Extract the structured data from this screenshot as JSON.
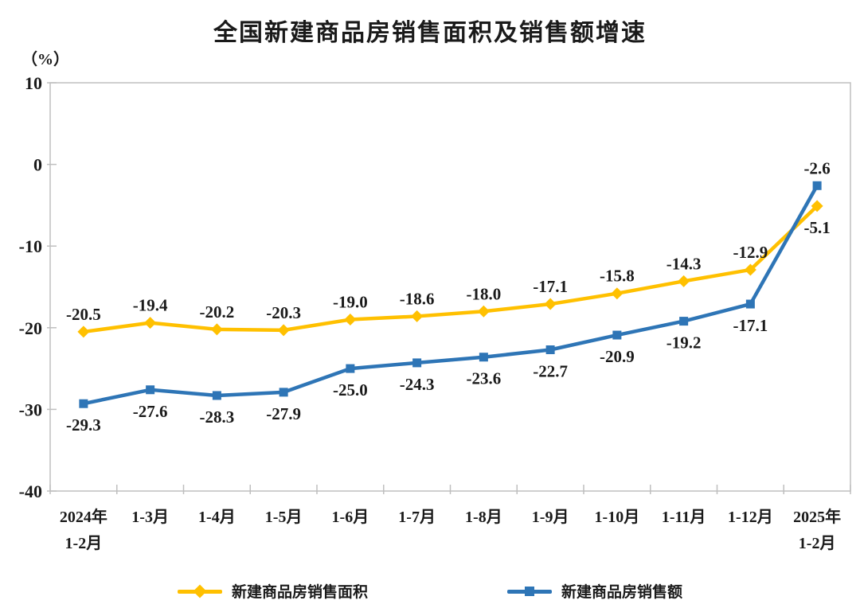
{
  "chart_data": {
    "type": "line",
    "title": "全国新建商品房销售面积及销售额增速",
    "unit_label": "（%）",
    "xlabel": "",
    "ylabel": "（%）",
    "categories": [
      "2024年\n1-2月",
      "1-3月",
      "1-4月",
      "1-5月",
      "1-6月",
      "1-7月",
      "1-8月",
      "1-9月",
      "1-10月",
      "1-11月",
      "1-12月",
      "2025年\n1-2月"
    ],
    "series": [
      {
        "name": "新建商品房销售面积",
        "marker": "diamond-marker-icon",
        "color": "#FFC000",
        "values": [
          -20.5,
          -19.4,
          -20.2,
          -20.3,
          -19.0,
          -18.6,
          -18.0,
          -17.1,
          -15.8,
          -14.3,
          -12.9,
          -5.1
        ]
      },
      {
        "name": "新建商品房销售额",
        "marker": "square-marker-icon",
        "color": "#2E75B6",
        "values": [
          -29.3,
          -27.6,
          -28.3,
          -27.9,
          -25.0,
          -24.3,
          -23.6,
          -22.7,
          -20.9,
          -19.2,
          -17.1,
          -2.6
        ]
      }
    ],
    "ylim": [
      -40,
      10
    ],
    "ytick_step": 10,
    "yticks": [
      "10",
      "0",
      "-10",
      "-20",
      "-30",
      "-40"
    ],
    "grid": false,
    "legend_position": "bottom",
    "colors": {
      "axis": "#BFBFBF",
      "text": "#1a1a1a"
    }
  }
}
